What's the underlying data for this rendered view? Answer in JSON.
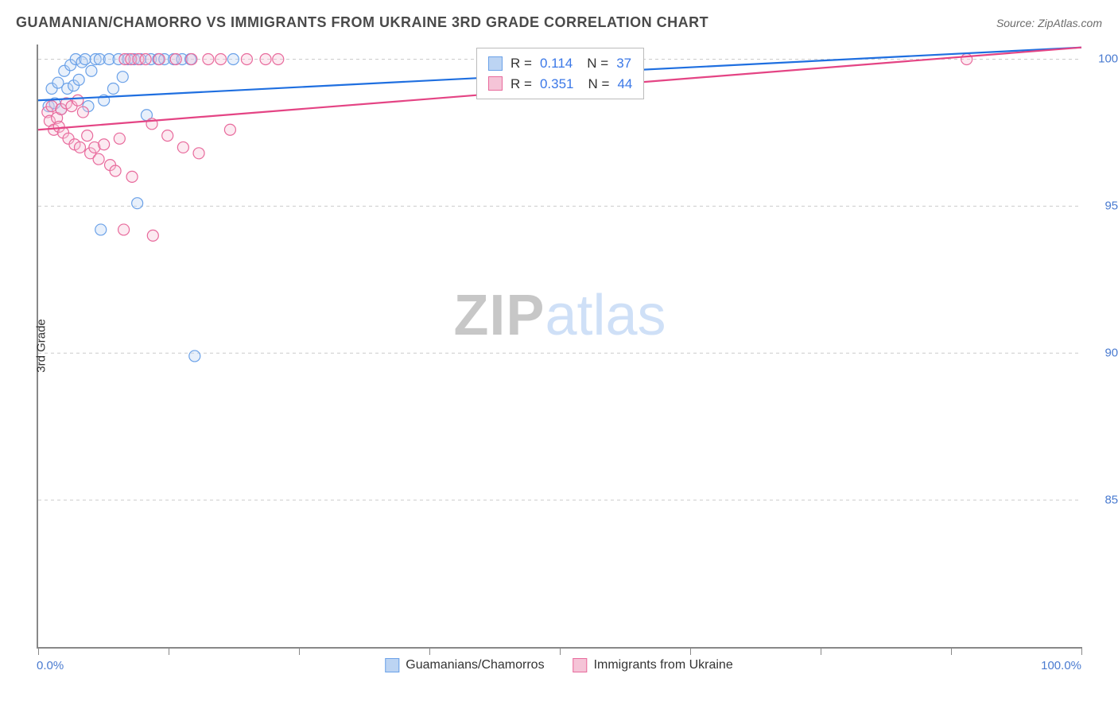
{
  "title": "GUAMANIAN/CHAMORRO VS IMMIGRANTS FROM UKRAINE 3RD GRADE CORRELATION CHART",
  "source": "Source: ZipAtlas.com",
  "watermark": {
    "zip": "ZIP",
    "atlas": "atlas"
  },
  "chart": {
    "type": "scatter",
    "ylabel": "3rd Grade",
    "xlim": [
      0,
      100
    ],
    "ylim": [
      80,
      100.5
    ],
    "ytick_values": [
      85,
      90,
      95,
      100
    ],
    "ytick_labels": [
      "85.0%",
      "90.0%",
      "95.0%",
      "100.0%"
    ],
    "xtick_values": [
      0,
      12.5,
      25,
      37.5,
      50,
      62.5,
      75,
      87.5,
      100
    ],
    "xaxis_end_labels": [
      "0.0%",
      "100.0%"
    ],
    "background_color": "#ffffff",
    "grid_color": "#cccccc",
    "axis_color": "#888888",
    "tick_label_color": "#4a7bd0",
    "point_radius": 7,
    "series": [
      {
        "key": "guamanian",
        "label": "Guamanians/Chamorros",
        "color": "#6aa1e8",
        "fill": "#bcd4f3",
        "r_value": "0.114",
        "n_value": "37",
        "trend": {
          "x1": 0,
          "y1": 98.6,
          "x2": 100,
          "y2": 100.4,
          "color": "#1f6fe0"
        },
        "points": [
          [
            1.0,
            98.4
          ],
          [
            1.3,
            99.0
          ],
          [
            1.6,
            98.5
          ],
          [
            1.9,
            99.2
          ],
          [
            2.2,
            98.3
          ],
          [
            2.5,
            99.6
          ],
          [
            2.8,
            99.0
          ],
          [
            3.1,
            99.8
          ],
          [
            3.4,
            99.1
          ],
          [
            3.6,
            100.0
          ],
          [
            3.9,
            99.3
          ],
          [
            4.2,
            99.9
          ],
          [
            4.5,
            100.0
          ],
          [
            4.8,
            98.4
          ],
          [
            5.1,
            99.6
          ],
          [
            5.5,
            100.0
          ],
          [
            5.9,
            100.0
          ],
          [
            6.3,
            98.6
          ],
          [
            6.8,
            100.0
          ],
          [
            7.2,
            99.0
          ],
          [
            7.7,
            100.0
          ],
          [
            8.1,
            99.4
          ],
          [
            8.6,
            100.0
          ],
          [
            9.2,
            100.0
          ],
          [
            9.5,
            95.1
          ],
          [
            9.8,
            100.0
          ],
          [
            10.4,
            98.1
          ],
          [
            10.8,
            100.0
          ],
          [
            11.5,
            100.0
          ],
          [
            12.1,
            100.0
          ],
          [
            13.0,
            100.0
          ],
          [
            13.8,
            100.0
          ],
          [
            14.6,
            100.0
          ],
          [
            6.0,
            94.2
          ],
          [
            15.0,
            89.9
          ],
          [
            18.7,
            100.0
          ],
          [
            48.0,
            100.0
          ]
        ]
      },
      {
        "key": "ukraine",
        "label": "Immigrants from Ukraine",
        "color": "#e86a9c",
        "fill": "#f5c4d7",
        "r_value": "0.351",
        "n_value": "44",
        "trend": {
          "x1": 0,
          "y1": 97.6,
          "x2": 100,
          "y2": 100.4,
          "color": "#e44484"
        },
        "points": [
          [
            0.9,
            98.2
          ],
          [
            1.1,
            97.9
          ],
          [
            1.3,
            98.4
          ],
          [
            1.5,
            97.6
          ],
          [
            1.8,
            98.0
          ],
          [
            2.0,
            97.7
          ],
          [
            2.2,
            98.3
          ],
          [
            2.4,
            97.5
          ],
          [
            2.7,
            98.5
          ],
          [
            2.9,
            97.3
          ],
          [
            3.2,
            98.4
          ],
          [
            3.5,
            97.1
          ],
          [
            3.8,
            98.6
          ],
          [
            4.0,
            97.0
          ],
          [
            4.3,
            98.2
          ],
          [
            4.7,
            97.4
          ],
          [
            5.0,
            96.8
          ],
          [
            5.4,
            97.0
          ],
          [
            5.8,
            96.6
          ],
          [
            6.3,
            97.1
          ],
          [
            6.9,
            96.4
          ],
          [
            7.4,
            96.2
          ],
          [
            7.8,
            97.3
          ],
          [
            8.3,
            100.0
          ],
          [
            8.9,
            100.0
          ],
          [
            9.6,
            100.0
          ],
          [
            10.3,
            100.0
          ],
          [
            10.9,
            97.8
          ],
          [
            11.6,
            100.0
          ],
          [
            12.4,
            97.4
          ],
          [
            13.2,
            100.0
          ],
          [
            13.9,
            97.0
          ],
          [
            14.7,
            100.0
          ],
          [
            15.4,
            96.8
          ],
          [
            16.3,
            100.0
          ],
          [
            17.5,
            100.0
          ],
          [
            18.4,
            97.6
          ],
          [
            9.0,
            96.0
          ],
          [
            8.2,
            94.2
          ],
          [
            11.0,
            94.0
          ],
          [
            20.0,
            100.0
          ],
          [
            21.8,
            100.0
          ],
          [
            23.0,
            100.0
          ],
          [
            89.0,
            100.0
          ]
        ]
      }
    ],
    "stat_legend_labels": {
      "r_prefix": "R =",
      "n_prefix": "N ="
    }
  },
  "bottom_legend": {
    "items": [
      {
        "label": "Guamanians/Chamorros",
        "series": "guamanian"
      },
      {
        "label": "Immigrants from Ukraine",
        "series": "ukraine"
      }
    ]
  }
}
